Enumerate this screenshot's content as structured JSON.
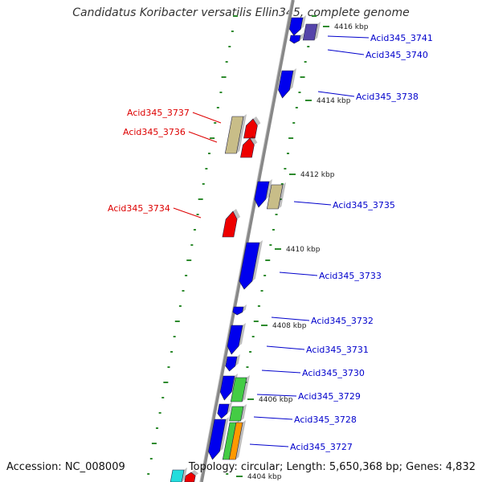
{
  "title": "Candidatus Koribacter versatilis Ellin345, complete genome",
  "footer": {
    "accession": "Accession: NC_008009",
    "summary": "Topology: circular; Length: 5,650,368 bp; Genes: 4,832"
  },
  "colors": {
    "backbone": "#888888",
    "tick": "#2e8b2e",
    "forward_label": "#0000cc",
    "reverse_label": "#dd0000",
    "cds": "#0000ee",
    "rna": "#c8bd88",
    "green": "#44cc44",
    "orange": "#ff9900",
    "red": "#ee0000",
    "purple": "#5544aa",
    "cyan": "#22dddd"
  },
  "ruler_labels": [
    "4416 kbp",
    "4414 kbp",
    "4412 kbp",
    "4410 kbp",
    "4408 kbp",
    "4406 kbp",
    "4404 kbp"
  ],
  "gene_labels_forward": [
    "Acid345_3741",
    "Acid345_3740",
    "Acid345_3738",
    "Acid345_3735",
    "Acid345_3733",
    "Acid345_3732",
    "Acid345_3731",
    "Acid345_3730",
    "Acid345_3729",
    "Acid345_3728",
    "Acid345_3727"
  ],
  "gene_labels_reverse": [
    "Acid345_3737",
    "Acid345_3736",
    "Acid345_3734"
  ]
}
